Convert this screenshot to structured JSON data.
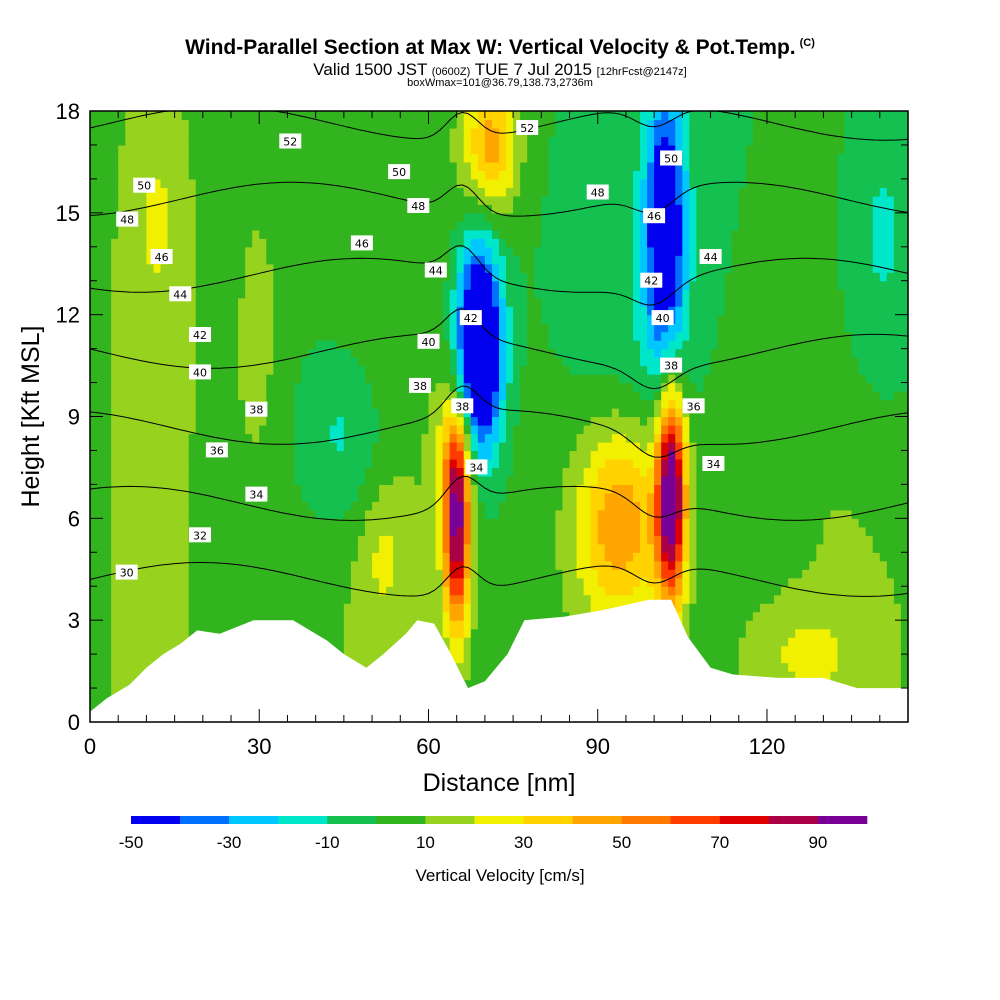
{
  "chart_data": {
    "type": "heatmap",
    "title": "Wind-Parallel Section at Max W: Vertical Velocity & Pot.Temp.",
    "title_mark": "(C)",
    "subtitle_main": "Valid 1500 JST",
    "subtitle_z": "(0600Z)",
    "subtitle_date": "TUE 7 Jul 2015",
    "subtitle_fcst": "[12hrFcst@2147z]",
    "subtitle2": "boxWmax=101@36.79,138.73,2736m",
    "xlabel": "Distance [nm]",
    "ylabel": "Height [Kft MSL]",
    "xlim": [
      0,
      145
    ],
    "ylim": [
      0,
      18
    ],
    "x_ticks": [
      "0",
      "30",
      "60",
      "90",
      "120"
    ],
    "x_tick_values": [
      0,
      30,
      60,
      90,
      120
    ],
    "y_ticks": [
      "0",
      "3",
      "6",
      "9",
      "12",
      "15",
      "18"
    ],
    "y_tick_values": [
      0,
      3,
      6,
      9,
      12,
      15,
      18
    ],
    "colorbar": {
      "label": "Vertical Velocity [cm/s]",
      "min": -50,
      "max": 100,
      "step": 10,
      "tick_labels": [
        "-50",
        "-30",
        "-10",
        "10",
        "30",
        "50",
        "70",
        "90"
      ],
      "tick_values": [
        -50,
        -30,
        -10,
        10,
        30,
        50,
        70,
        90
      ],
      "colors": [
        "#0000ee",
        "#0070ff",
        "#00c8ff",
        "#00e6c8",
        "#14c050",
        "#32b41e",
        "#96d21e",
        "#f0f000",
        "#ffd200",
        "#ffa500",
        "#ff7800",
        "#ff3c00",
        "#dc0000",
        "#aa0046",
        "#780096"
      ]
    },
    "vertical_velocity_features": [
      {
        "x": 65,
        "y": 5.5,
        "sx": 1.6,
        "sy": 2.0,
        "w": 80
      },
      {
        "x": 65,
        "y": 7.8,
        "sx": 2.2,
        "sy": 1.5,
        "w": 35
      },
      {
        "x": 69,
        "y": 11,
        "sx": 2.8,
        "sy": 2.2,
        "w": -85
      },
      {
        "x": 71,
        "y": 17,
        "sx": 3.5,
        "sy": 1.5,
        "w": 45
      },
      {
        "x": 103,
        "y": 6.8,
        "sx": 1.8,
        "sy": 2.2,
        "w": 100
      },
      {
        "x": 94,
        "y": 6,
        "sx": 5.5,
        "sy": 2.0,
        "w": 45
      },
      {
        "x": 102,
        "y": 14.5,
        "sx": 2.5,
        "sy": 3.0,
        "w": -60
      },
      {
        "x": 95,
        "y": 12,
        "sx": 9,
        "sy": 5,
        "w": -18
      },
      {
        "x": 30,
        "y": 12,
        "sx": 3.5,
        "sy": 4,
        "w": 10
      },
      {
        "x": 12,
        "y": 15,
        "sx": 4,
        "sy": 3,
        "w": 12
      },
      {
        "x": 52,
        "y": 5,
        "sx": 3,
        "sy": 1.5,
        "w": 12
      },
      {
        "x": 125,
        "y": 2,
        "sx": 8,
        "sy": 1.2,
        "w": 14
      },
      {
        "x": 45,
        "y": 8.5,
        "sx": 6,
        "sy": 2,
        "w": -20
      },
      {
        "x": 140,
        "y": 14,
        "sx": 6,
        "sy": 4,
        "w": -20
      }
    ],
    "terrain": [
      [
        0,
        0.3
      ],
      [
        3,
        0.7
      ],
      [
        7,
        1.1
      ],
      [
        10,
        1.6
      ],
      [
        13,
        2.0
      ],
      [
        16,
        2.3
      ],
      [
        19,
        2.7
      ],
      [
        23,
        2.6
      ],
      [
        29,
        3.0
      ],
      [
        36,
        3.0
      ],
      [
        39,
        2.7
      ],
      [
        42,
        2.4
      ],
      [
        45,
        2.0
      ],
      [
        49,
        1.6
      ],
      [
        52,
        2.0
      ],
      [
        56,
        2.6
      ],
      [
        58,
        3.0
      ],
      [
        61,
        2.9
      ],
      [
        64,
        2.0
      ],
      [
        67,
        1.0
      ],
      [
        70,
        1.2
      ],
      [
        74,
        2.0
      ],
      [
        77,
        3.0
      ],
      [
        84,
        3.1
      ],
      [
        91,
        3.3
      ],
      [
        99,
        3.6
      ],
      [
        103,
        3.6
      ],
      [
        106,
        2.5
      ],
      [
        110,
        1.6
      ],
      [
        114,
        1.4
      ],
      [
        122,
        1.3
      ],
      [
        130,
        1.3
      ],
      [
        136,
        1.0
      ],
      [
        145,
        1.0
      ]
    ],
    "theta_contours": {
      "levels": [
        30,
        32,
        34,
        36,
        38,
        40,
        42,
        44,
        46,
        48,
        50,
        52
      ],
      "labels": [
        {
          "text": "30",
          "x": 6.5,
          "y": 4.4
        },
        {
          "text": "32",
          "x": 19.5,
          "y": 5.5
        },
        {
          "text": "34",
          "x": 29.5,
          "y": 6.7
        },
        {
          "text": "36",
          "x": 22.5,
          "y": 8.0
        },
        {
          "text": "38",
          "x": 29.5,
          "y": 9.2
        },
        {
          "text": "40",
          "x": 19.5,
          "y": 10.3
        },
        {
          "text": "42",
          "x": 19.5,
          "y": 11.4
        },
        {
          "text": "44",
          "x": 16,
          "y": 12.6
        },
        {
          "text": "46",
          "x": 12.7,
          "y": 13.7
        },
        {
          "text": "48",
          "x": 6.6,
          "y": 14.8
        },
        {
          "text": "50",
          "x": 9.6,
          "y": 15.8
        },
        {
          "text": "52",
          "x": 35.5,
          "y": 17.1
        },
        {
          "text": "46",
          "x": 48.2,
          "y": 14.1
        },
        {
          "text": "50",
          "x": 54.8,
          "y": 16.2
        },
        {
          "text": "48",
          "x": 58.2,
          "y": 15.2
        },
        {
          "text": "44",
          "x": 61.3,
          "y": 13.3
        },
        {
          "text": "52",
          "x": 77.5,
          "y": 17.5
        },
        {
          "text": "40",
          "x": 60,
          "y": 11.2
        },
        {
          "text": "42",
          "x": 67.5,
          "y": 11.9
        },
        {
          "text": "38",
          "x": 58.5,
          "y": 9.9
        },
        {
          "text": "38",
          "x": 66,
          "y": 9.3
        },
        {
          "text": "34",
          "x": 68.5,
          "y": 7.5
        },
        {
          "text": "48",
          "x": 90,
          "y": 15.6
        },
        {
          "text": "50",
          "x": 103,
          "y": 16.6
        },
        {
          "text": "46",
          "x": 100,
          "y": 14.9
        },
        {
          "text": "44",
          "x": 110,
          "y": 13.7
        },
        {
          "text": "42",
          "x": 99.5,
          "y": 13.0
        },
        {
          "text": "40",
          "x": 101.5,
          "y": 11.9
        },
        {
          "text": "38",
          "x": 103,
          "y": 10.5
        },
        {
          "text": "36",
          "x": 107,
          "y": 9.3
        },
        {
          "text": "34",
          "x": 110.5,
          "y": 7.6
        }
      ]
    }
  }
}
